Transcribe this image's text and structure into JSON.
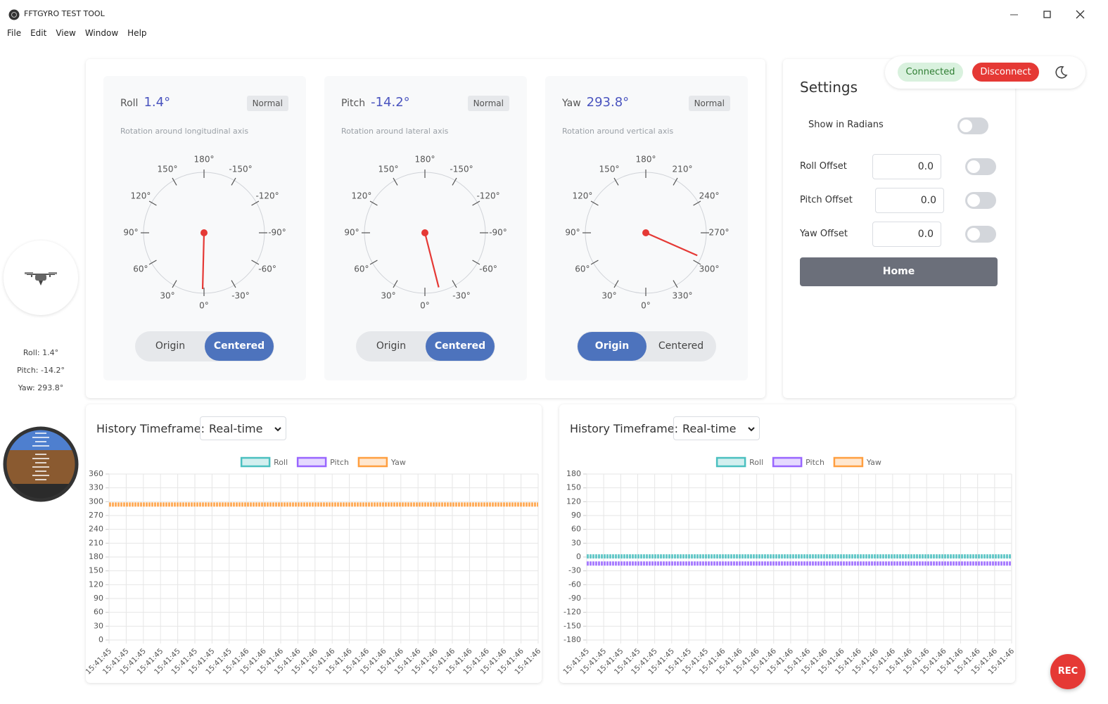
{
  "window": {
    "title": "FFTGYRO TEST TOOL",
    "menu": [
      "File",
      "Edit",
      "View",
      "Window",
      "Help"
    ]
  },
  "connection": {
    "status": "Connected",
    "action": "Disconnect"
  },
  "sidebar": {
    "readouts": [
      "Roll: 1.4°",
      "Pitch: -14.2°",
      "Yaw: 293.8°"
    ]
  },
  "gauges": [
    {
      "name": "Roll",
      "value": 1.4,
      "value_label": "1.4°",
      "badge": "Normal",
      "description": "Rotation around longitudinal axis",
      "ticks": [
        {
          "value": 0,
          "label": "0°"
        },
        {
          "value": 30,
          "label": "30°"
        },
        {
          "value": 60,
          "label": "60°"
        },
        {
          "value": 90,
          "label": "90°"
        },
        {
          "value": 120,
          "label": "120°"
        },
        {
          "value": 150,
          "label": "150°"
        },
        {
          "value": 180,
          "label": "180°"
        },
        {
          "value": -150,
          "label": "-150°"
        },
        {
          "value": -120,
          "label": "-120°"
        },
        {
          "value": -90,
          "label": "-90°"
        },
        {
          "value": -60,
          "label": "-60°"
        },
        {
          "value": -30,
          "label": "-30°"
        }
      ],
      "modes": [
        "Origin",
        "Centered"
      ],
      "active": 1
    },
    {
      "name": "Pitch",
      "value": -14.2,
      "value_label": "-14.2°",
      "badge": "Normal",
      "description": "Rotation around lateral axis",
      "ticks": [
        {
          "value": 0,
          "label": "0°"
        },
        {
          "value": 30,
          "label": "30°"
        },
        {
          "value": 60,
          "label": "60°"
        },
        {
          "value": 90,
          "label": "90°"
        },
        {
          "value": 120,
          "label": "120°"
        },
        {
          "value": 150,
          "label": "150°"
        },
        {
          "value": 180,
          "label": "180°"
        },
        {
          "value": -150,
          "label": "-150°"
        },
        {
          "value": -120,
          "label": "-120°"
        },
        {
          "value": -90,
          "label": "-90°"
        },
        {
          "value": -60,
          "label": "-60°"
        },
        {
          "value": -30,
          "label": "-30°"
        }
      ],
      "modes": [
        "Origin",
        "Centered"
      ],
      "active": 1
    },
    {
      "name": "Yaw",
      "value": 293.8,
      "value_label": "293.8°",
      "badge": "Normal",
      "description": "Rotation around vertical axis",
      "ticks": [
        {
          "value": 0,
          "label": "0°"
        },
        {
          "value": 30,
          "label": "30°"
        },
        {
          "value": 60,
          "label": "60°"
        },
        {
          "value": 90,
          "label": "90°"
        },
        {
          "value": 120,
          "label": "120°"
        },
        {
          "value": 150,
          "label": "150°"
        },
        {
          "value": 180,
          "label": "180°"
        },
        {
          "value": 210,
          "label": "210°"
        },
        {
          "value": 240,
          "label": "240°"
        },
        {
          "value": 270,
          "label": "270°"
        },
        {
          "value": 300,
          "label": "300°"
        },
        {
          "value": 330,
          "label": "330°"
        }
      ],
      "modes": [
        "Origin",
        "Centered"
      ],
      "active": 0
    }
  ],
  "settings": {
    "title": "Settings",
    "radians_label": "Show in Radians",
    "offsets": [
      {
        "label": "Roll Offset",
        "value": "0.0"
      },
      {
        "label": "Pitch Offset",
        "value": "0.0"
      },
      {
        "label": "Yaw Offset",
        "value": "0.0"
      }
    ],
    "home": "Home"
  },
  "charts": [
    {
      "type": "line",
      "control_label": "History Timeframe:",
      "timeframe": "Real-time",
      "categories": [
        "15:41:45",
        "15:41:45",
        "15:41:45",
        "15:41:45",
        "15:41:45",
        "15:41:45",
        "15:41:45",
        "15:41:45",
        "15:41:46",
        "15:41:46",
        "15:41:46",
        "15:41:46",
        "15:41:46",
        "15:41:46",
        "15:41:46",
        "15:41:46",
        "15:41:46",
        "15:41:46",
        "15:41:46",
        "15:41:46",
        "15:41:46",
        "15:41:46",
        "15:41:46",
        "15:41:46",
        "15:41:46",
        "15:41:46"
      ],
      "series": [
        {
          "name": "Roll",
          "color": "#4bc0c0",
          "values": [
            null,
            null,
            null,
            null,
            null,
            null,
            null,
            null,
            null,
            null,
            null,
            null,
            null,
            null,
            null,
            null,
            null,
            null,
            null,
            null,
            null,
            null,
            null,
            null,
            null,
            null
          ]
        },
        {
          "name": "Pitch",
          "color": "#9966ff",
          "values": [
            null,
            null,
            null,
            null,
            null,
            null,
            null,
            null,
            null,
            null,
            null,
            null,
            null,
            null,
            null,
            null,
            null,
            null,
            null,
            null,
            null,
            null,
            null,
            null,
            null,
            null
          ]
        },
        {
          "name": "Yaw",
          "color": "#ff9f40",
          "values": [
            293.8,
            293.8,
            293.8,
            293.8,
            293.8,
            293.8,
            293.8,
            293.8,
            293.8,
            293.8,
            293.8,
            293.8,
            293.8,
            293.8,
            293.8,
            293.8,
            293.8,
            293.8,
            293.8,
            293.8,
            293.8,
            293.8,
            293.8,
            293.8,
            293.8,
            293.8
          ]
        }
      ],
      "ylim": [
        0,
        360
      ],
      "yticks": [
        0,
        30,
        60,
        90,
        120,
        150,
        180,
        210,
        240,
        270,
        300,
        330,
        360
      ],
      "grid": true
    },
    {
      "type": "line",
      "control_label": "History Timeframe:",
      "timeframe": "Real-time",
      "categories": [
        "15:41:45",
        "15:41:45",
        "15:41:45",
        "15:41:45",
        "15:41:45",
        "15:41:45",
        "15:41:45",
        "15:41:45",
        "15:41:46",
        "15:41:46",
        "15:41:46",
        "15:41:46",
        "15:41:46",
        "15:41:46",
        "15:41:46",
        "15:41:46",
        "15:41:46",
        "15:41:46",
        "15:41:46",
        "15:41:46",
        "15:41:46",
        "15:41:46",
        "15:41:46",
        "15:41:46",
        "15:41:46",
        "15:41:46"
      ],
      "series": [
        {
          "name": "Roll",
          "color": "#4bc0c0",
          "values": [
            1.4,
            1.4,
            1.4,
            1.4,
            1.4,
            1.4,
            1.4,
            1.4,
            1.4,
            1.4,
            1.4,
            1.4,
            1.4,
            1.4,
            1.4,
            1.4,
            1.4,
            1.4,
            1.4,
            1.4,
            1.4,
            1.4,
            1.4,
            1.4,
            1.4,
            1.4
          ]
        },
        {
          "name": "Pitch",
          "color": "#9966ff",
          "values": [
            -14.2,
            -14.2,
            -14.2,
            -14.2,
            -14.2,
            -14.2,
            -14.2,
            -14.2,
            -14.2,
            -14.2,
            -14.2,
            -14.2,
            -14.2,
            -14.2,
            -14.2,
            -14.2,
            -14.2,
            -14.2,
            -14.2,
            -14.2,
            -14.2,
            -14.2,
            -14.2,
            -14.2,
            -14.2,
            -14.2
          ]
        },
        {
          "name": "Yaw",
          "color": "#ff9f40",
          "values": [
            null,
            null,
            null,
            null,
            null,
            null,
            null,
            null,
            null,
            null,
            null,
            null,
            null,
            null,
            null,
            null,
            null,
            null,
            null,
            null,
            null,
            null,
            null,
            null,
            null,
            null
          ]
        }
      ],
      "ylim": [
        -180,
        180
      ],
      "yticks": [
        -180,
        -150,
        -120,
        -90,
        -60,
        -30,
        0,
        30,
        60,
        90,
        120,
        150,
        180
      ],
      "grid": true
    }
  ],
  "rec": "REC"
}
